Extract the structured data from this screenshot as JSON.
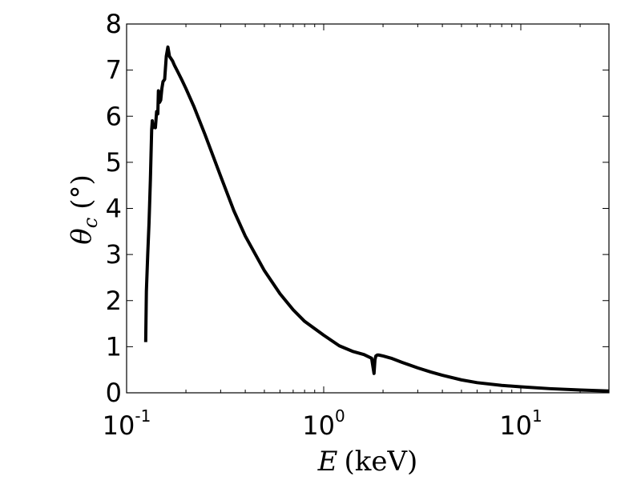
{
  "chart_data": {
    "type": "line",
    "xscale": "log",
    "xlim": [
      0.1,
      28
    ],
    "ylim": [
      0,
      8
    ],
    "grid": false,
    "xlabel": {
      "symbol": "E",
      "unit": "(keV)"
    },
    "ylabel": {
      "symbol": "θ",
      "subscript": "c",
      "unit": "(°)"
    },
    "x_ticks": [
      {
        "value": 0.1,
        "base": "10",
        "exponent": "-1"
      },
      {
        "value": 1,
        "base": "10",
        "exponent": "0"
      },
      {
        "value": 10,
        "base": "10",
        "exponent": "1"
      }
    ],
    "y_ticks": [
      "0",
      "1",
      "2",
      "3",
      "4",
      "5",
      "6",
      "7",
      "8"
    ],
    "series": [
      {
        "color": "#000000",
        "x": [
          0.125,
          0.126,
          0.128,
          0.13,
          0.132,
          0.134,
          0.135,
          0.136,
          0.138,
          0.14,
          0.142,
          0.144,
          0.145,
          0.147,
          0.149,
          0.151,
          0.153,
          0.156,
          0.159,
          0.162,
          0.165,
          0.168,
          0.171,
          0.175,
          0.18,
          0.19,
          0.2,
          0.22,
          0.25,
          0.3,
          0.35,
          0.4,
          0.5,
          0.6,
          0.7,
          0.8,
          1.0,
          1.2,
          1.4,
          1.6,
          1.75,
          1.8,
          1.82,
          1.84,
          1.87,
          1.9,
          2.0,
          2.2,
          2.5,
          3.0,
          3.5,
          4.0,
          5.0,
          6.0,
          8.0,
          10.0,
          14.0,
          20.0,
          28.0
        ],
        "y": [
          1.1,
          2.2,
          3.0,
          3.7,
          4.6,
          5.7,
          5.9,
          5.75,
          5.8,
          5.75,
          6.1,
          6.05,
          6.55,
          6.3,
          6.35,
          6.6,
          6.75,
          6.8,
          7.3,
          7.5,
          7.3,
          7.25,
          7.2,
          7.1,
          7.0,
          6.8,
          6.6,
          6.2,
          5.6,
          4.7,
          3.95,
          3.4,
          2.65,
          2.15,
          1.8,
          1.55,
          1.25,
          1.02,
          0.9,
          0.83,
          0.75,
          0.42,
          0.72,
          0.8,
          0.82,
          0.82,
          0.8,
          0.75,
          0.66,
          0.54,
          0.45,
          0.38,
          0.28,
          0.22,
          0.16,
          0.13,
          0.09,
          0.06,
          0.04
        ]
      }
    ]
  }
}
